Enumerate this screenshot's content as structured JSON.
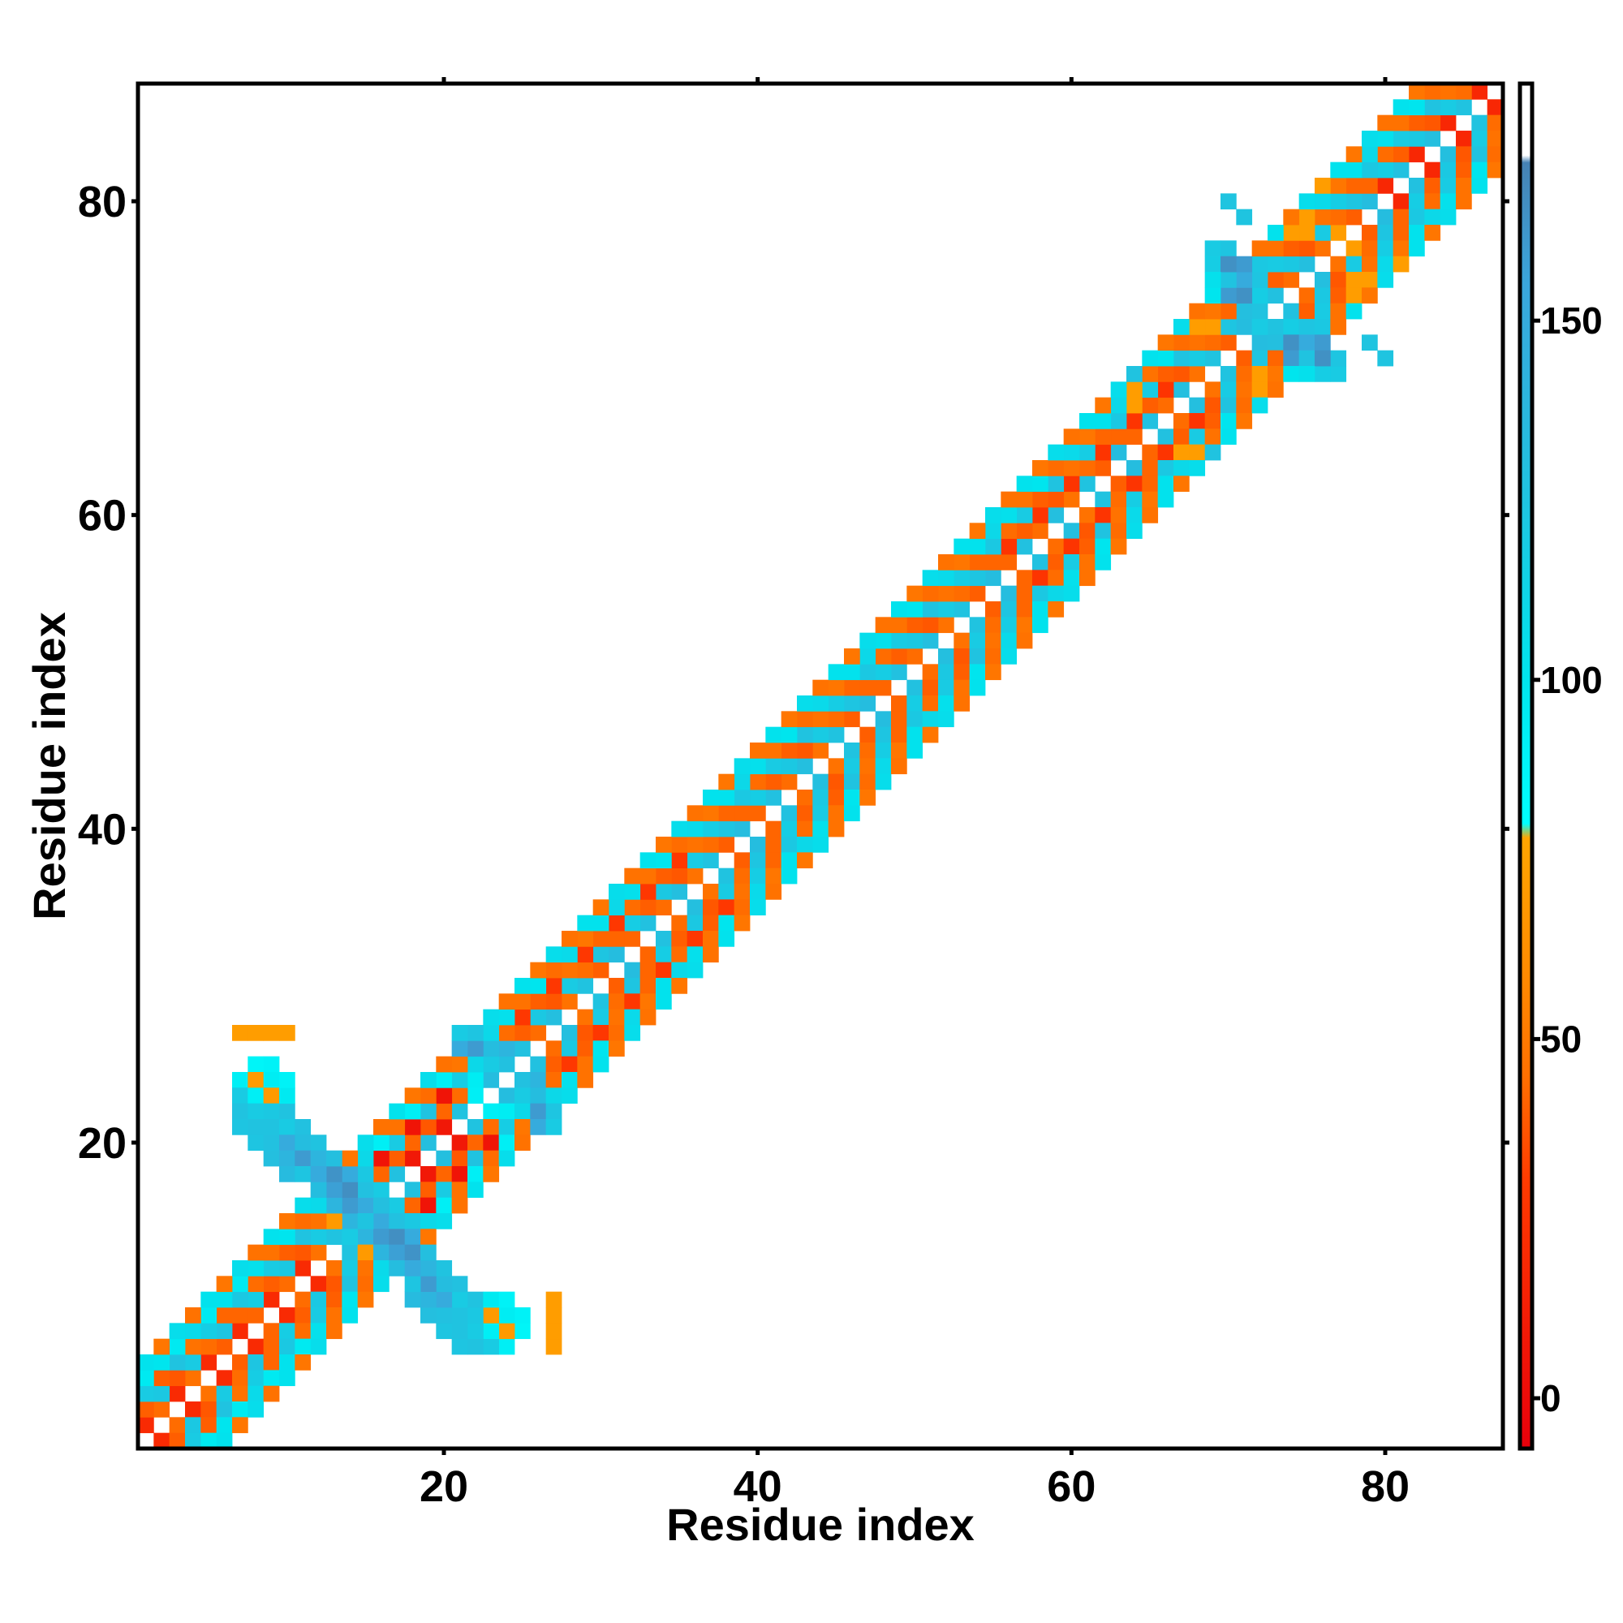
{
  "chart_data": {
    "type": "heatmap",
    "title": "",
    "xlabel": "Residue index",
    "ylabel": "Residue index",
    "xlim": [
      0.5,
      87.5
    ],
    "ylim": [
      0.5,
      87.5
    ],
    "x_ticks": [
      20,
      40,
      60,
      80
    ],
    "y_ticks": [
      20,
      40,
      60,
      80
    ],
    "grid": false,
    "colorbar": {
      "range": [
        -7,
        183
      ],
      "ticks": [
        0,
        50,
        100,
        150
      ],
      "stops": [
        {
          "value": -7,
          "color": "#e8000b"
        },
        {
          "value": 30,
          "color": "#ff3a00"
        },
        {
          "value": 45,
          "color": "#ff7000"
        },
        {
          "value": 60,
          "color": "#ff8c00"
        },
        {
          "value": 78,
          "color": "#ffa500"
        },
        {
          "value": 80,
          "color": "#00ffff"
        },
        {
          "value": 100,
          "color": "#00e5ee"
        },
        {
          "value": 125,
          "color": "#1fc4e0"
        },
        {
          "value": 155,
          "color": "#3aa6dc"
        },
        {
          "value": 172,
          "color": "#4682b4"
        },
        {
          "value": 173,
          "color": "#ffffff"
        },
        {
          "value": 183,
          "color": "#ffffff"
        }
      ]
    },
    "band_pattern": [
      {
        "offset": 1,
        "values": [
          42,
          128,
          44,
          130,
          46,
          126,
          40,
          132
        ]
      },
      {
        "offset": 2,
        "values": [
          118,
          40,
          122,
          38,
          120,
          44,
          124,
          42
        ]
      },
      {
        "offset": 3,
        "values": [
          44,
          120,
          40,
          126,
          46,
          118,
          42,
          122
        ]
      },
      {
        "offset": 4,
        "values": [
          104,
          46,
          100,
          44,
          108,
          48,
          102,
          110
        ]
      },
      {
        "offset": 5,
        "values": [
          46,
          102,
          48,
          106
        ]
      }
    ],
    "band_overrides": [
      {
        "from": 1,
        "to": 12,
        "offset": 1,
        "value": 20
      },
      {
        "from": 1,
        "to": 8,
        "offset": 4,
        "value": 96
      },
      {
        "from": 16,
        "to": 22,
        "offset": 1,
        "value": 8
      },
      {
        "from": 16,
        "to": 22,
        "offset": 2,
        "value": 42
      },
      {
        "from": 16,
        "to": 22,
        "offset": 3,
        "value": 6
      },
      {
        "from": 16,
        "to": 22,
        "offset": 4,
        "value": 92
      },
      {
        "from": 23,
        "to": 36,
        "offset": 3,
        "value": 28
      },
      {
        "from": 56,
        "to": 66,
        "offset": 2,
        "value": 26
      },
      {
        "from": 68,
        "to": 72,
        "offset": 4,
        "value": 66
      },
      {
        "from": 80,
        "to": 87,
        "offset": 1,
        "value": 18
      }
    ],
    "extra_cells": [
      {
        "x": 7,
        "y": 27,
        "value": 72
      },
      {
        "x": 8,
        "y": 27,
        "value": 72
      },
      {
        "x": 8,
        "y": 25,
        "value": 88
      },
      {
        "x": 9,
        "y": 25,
        "value": 90
      },
      {
        "x": 7,
        "y": 24,
        "value": 92
      },
      {
        "x": 8,
        "y": 24,
        "value": 70
      },
      {
        "x": 9,
        "y": 24,
        "value": 98
      },
      {
        "x": 7,
        "y": 23,
        "value": 120
      },
      {
        "x": 8,
        "y": 23,
        "value": 122
      },
      {
        "x": 9,
        "y": 23,
        "value": 124
      },
      {
        "x": 7,
        "y": 22,
        "value": 126
      },
      {
        "x": 8,
        "y": 22,
        "value": 130
      },
      {
        "x": 9,
        "y": 22,
        "value": 134
      },
      {
        "x": 10,
        "y": 22,
        "value": 128
      },
      {
        "x": 7,
        "y": 21,
        "value": 124
      },
      {
        "x": 8,
        "y": 21,
        "value": 132
      },
      {
        "x": 9,
        "y": 21,
        "value": 140
      },
      {
        "x": 10,
        "y": 21,
        "value": 136
      },
      {
        "x": 11,
        "y": 21,
        "value": 126
      },
      {
        "x": 8,
        "y": 20,
        "value": 138
      },
      {
        "x": 9,
        "y": 20,
        "value": 160
      },
      {
        "x": 10,
        "y": 20,
        "value": 165
      },
      {
        "x": 11,
        "y": 20,
        "value": 158
      },
      {
        "x": 12,
        "y": 20,
        "value": 130
      },
      {
        "x": 9,
        "y": 19,
        "value": 140
      },
      {
        "x": 10,
        "y": 19,
        "value": 150
      },
      {
        "x": 11,
        "y": 19,
        "value": 155
      },
      {
        "x": 12,
        "y": 19,
        "value": 162
      },
      {
        "x": 13,
        "y": 19,
        "value": 140
      },
      {
        "x": 10,
        "y": 18,
        "value": 134
      },
      {
        "x": 11,
        "y": 18,
        "value": 142
      },
      {
        "x": 12,
        "y": 18,
        "value": 150
      },
      {
        "x": 13,
        "y": 18,
        "value": 168
      },
      {
        "x": 12,
        "y": 17,
        "value": 110
      },
      {
        "x": 13,
        "y": 17,
        "value": 128
      },
      {
        "x": 14,
        "y": 17,
        "value": 140
      },
      {
        "x": 16,
        "y": 16,
        "value": 130
      },
      {
        "x": 17,
        "y": 16,
        "value": 120
      },
      {
        "x": 15,
        "y": 15,
        "value": 125
      },
      {
        "x": 16,
        "y": 15,
        "value": 150
      },
      {
        "x": 17,
        "y": 15,
        "value": 128
      },
      {
        "x": 14,
        "y": 14,
        "value": 120
      },
      {
        "x": 15,
        "y": 14,
        "value": 140
      },
      {
        "x": 16,
        "y": 14,
        "value": 160
      },
      {
        "x": 17,
        "y": 14,
        "value": 166
      },
      {
        "x": 18,
        "y": 14,
        "value": 150
      },
      {
        "x": 15,
        "y": 13,
        "value": 70
      },
      {
        "x": 16,
        "y": 13,
        "value": 140
      },
      {
        "x": 17,
        "y": 13,
        "value": 158
      },
      {
        "x": 18,
        "y": 13,
        "value": 164
      },
      {
        "x": 19,
        "y": 13,
        "value": 130
      },
      {
        "x": 17,
        "y": 12,
        "value": 132
      },
      {
        "x": 18,
        "y": 12,
        "value": 150
      },
      {
        "x": 19,
        "y": 12,
        "value": 140
      },
      {
        "x": 20,
        "y": 12,
        "value": 126
      },
      {
        "x": 18,
        "y": 11,
        "value": 124
      },
      {
        "x": 19,
        "y": 11,
        "value": 160
      },
      {
        "x": 20,
        "y": 11,
        "value": 132
      },
      {
        "x": 21,
        "y": 11,
        "value": 128
      },
      {
        "x": 19,
        "y": 10,
        "value": 140
      },
      {
        "x": 20,
        "y": 10,
        "value": 150
      },
      {
        "x": 21,
        "y": 10,
        "value": 120
      },
      {
        "x": 22,
        "y": 10,
        "value": 126
      },
      {
        "x": 23,
        "y": 10,
        "value": 96
      },
      {
        "x": 24,
        "y": 10,
        "value": 90
      },
      {
        "x": 19,
        "y": 9,
        "value": 130
      },
      {
        "x": 20,
        "y": 9,
        "value": 128
      },
      {
        "x": 21,
        "y": 9,
        "value": 126
      },
      {
        "x": 22,
        "y": 9,
        "value": 122
      },
      {
        "x": 23,
        "y": 9,
        "value": 70
      },
      {
        "x": 24,
        "y": 9,
        "value": 94
      },
      {
        "x": 20,
        "y": 8,
        "value": 124
      },
      {
        "x": 21,
        "y": 8,
        "value": 126
      },
      {
        "x": 22,
        "y": 8,
        "value": 120
      },
      {
        "x": 23,
        "y": 8,
        "value": 92
      },
      {
        "x": 27,
        "y": 10,
        "value": 72
      },
      {
        "x": 27,
        "y": 9,
        "value": 72
      },
      {
        "x": 21,
        "y": 27,
        "value": 120
      },
      {
        "x": 22,
        "y": 27,
        "value": 124
      },
      {
        "x": 21,
        "y": 26,
        "value": 130
      },
      {
        "x": 22,
        "y": 26,
        "value": 160
      },
      {
        "x": 23,
        "y": 26,
        "value": 126
      },
      {
        "x": 22,
        "y": 25,
        "value": 110
      },
      {
        "x": 23,
        "y": 25,
        "value": 124
      },
      {
        "x": 24,
        "y": 25,
        "value": 120
      },
      {
        "x": 25,
        "y": 24,
        "value": 128
      },
      {
        "x": 26,
        "y": 24,
        "value": 140
      },
      {
        "x": 25,
        "y": 23,
        "value": 120
      },
      {
        "x": 26,
        "y": 23,
        "value": 132
      },
      {
        "x": 26,
        "y": 22,
        "value": 160
      },
      {
        "x": 27,
        "y": 22,
        "value": 124
      },
      {
        "x": 26,
        "y": 21,
        "value": 150
      },
      {
        "x": 23,
        "y": 22,
        "value": 92
      },
      {
        "x": 24,
        "y": 22,
        "value": 94
      },
      {
        "x": 70,
        "y": 80,
        "value": 125
      },
      {
        "x": 69,
        "y": 77,
        "value": 120
      },
      {
        "x": 70,
        "y": 77,
        "value": 124
      },
      {
        "x": 69,
        "y": 76,
        "value": 118
      },
      {
        "x": 70,
        "y": 76,
        "value": 165
      },
      {
        "x": 71,
        "y": 76,
        "value": 160
      },
      {
        "x": 72,
        "y": 76,
        "value": 122
      },
      {
        "x": 69,
        "y": 75,
        "value": 120
      },
      {
        "x": 70,
        "y": 75,
        "value": 160
      },
      {
        "x": 71,
        "y": 75,
        "value": 150
      },
      {
        "x": 72,
        "y": 75,
        "value": 124
      },
      {
        "x": 70,
        "y": 74,
        "value": 126
      },
      {
        "x": 71,
        "y": 74,
        "value": 130
      },
      {
        "x": 68,
        "y": 72,
        "value": 72
      },
      {
        "x": 69,
        "y": 72,
        "value": 72
      },
      {
        "x": 72,
        "y": 72,
        "value": 120
      },
      {
        "x": 73,
        "y": 72,
        "value": 126
      },
      {
        "x": 73,
        "y": 71,
        "value": 130
      },
      {
        "x": 74,
        "y": 71,
        "value": 165
      },
      {
        "x": 75,
        "y": 71,
        "value": 150
      },
      {
        "x": 74,
        "y": 70,
        "value": 160
      },
      {
        "x": 75,
        "y": 70,
        "value": 126
      },
      {
        "x": 74,
        "y": 69,
        "value": 100
      },
      {
        "x": 75,
        "y": 69,
        "value": 104
      },
      {
        "x": 79,
        "y": 71,
        "value": 125
      },
      {
        "x": 67,
        "y": 64,
        "value": 72
      },
      {
        "x": 68,
        "y": 64,
        "value": 72
      },
      {
        "x": 69,
        "y": 64,
        "value": 126
      },
      {
        "x": 76,
        "y": 81,
        "value": 72
      },
      {
        "x": 77,
        "y": 78,
        "value": 72
      },
      {
        "x": 78,
        "y": 74,
        "value": 72
      },
      {
        "x": 75,
        "y": 79,
        "value": 72
      },
      {
        "x": 75,
        "y": 78,
        "value": 72
      }
    ]
  }
}
